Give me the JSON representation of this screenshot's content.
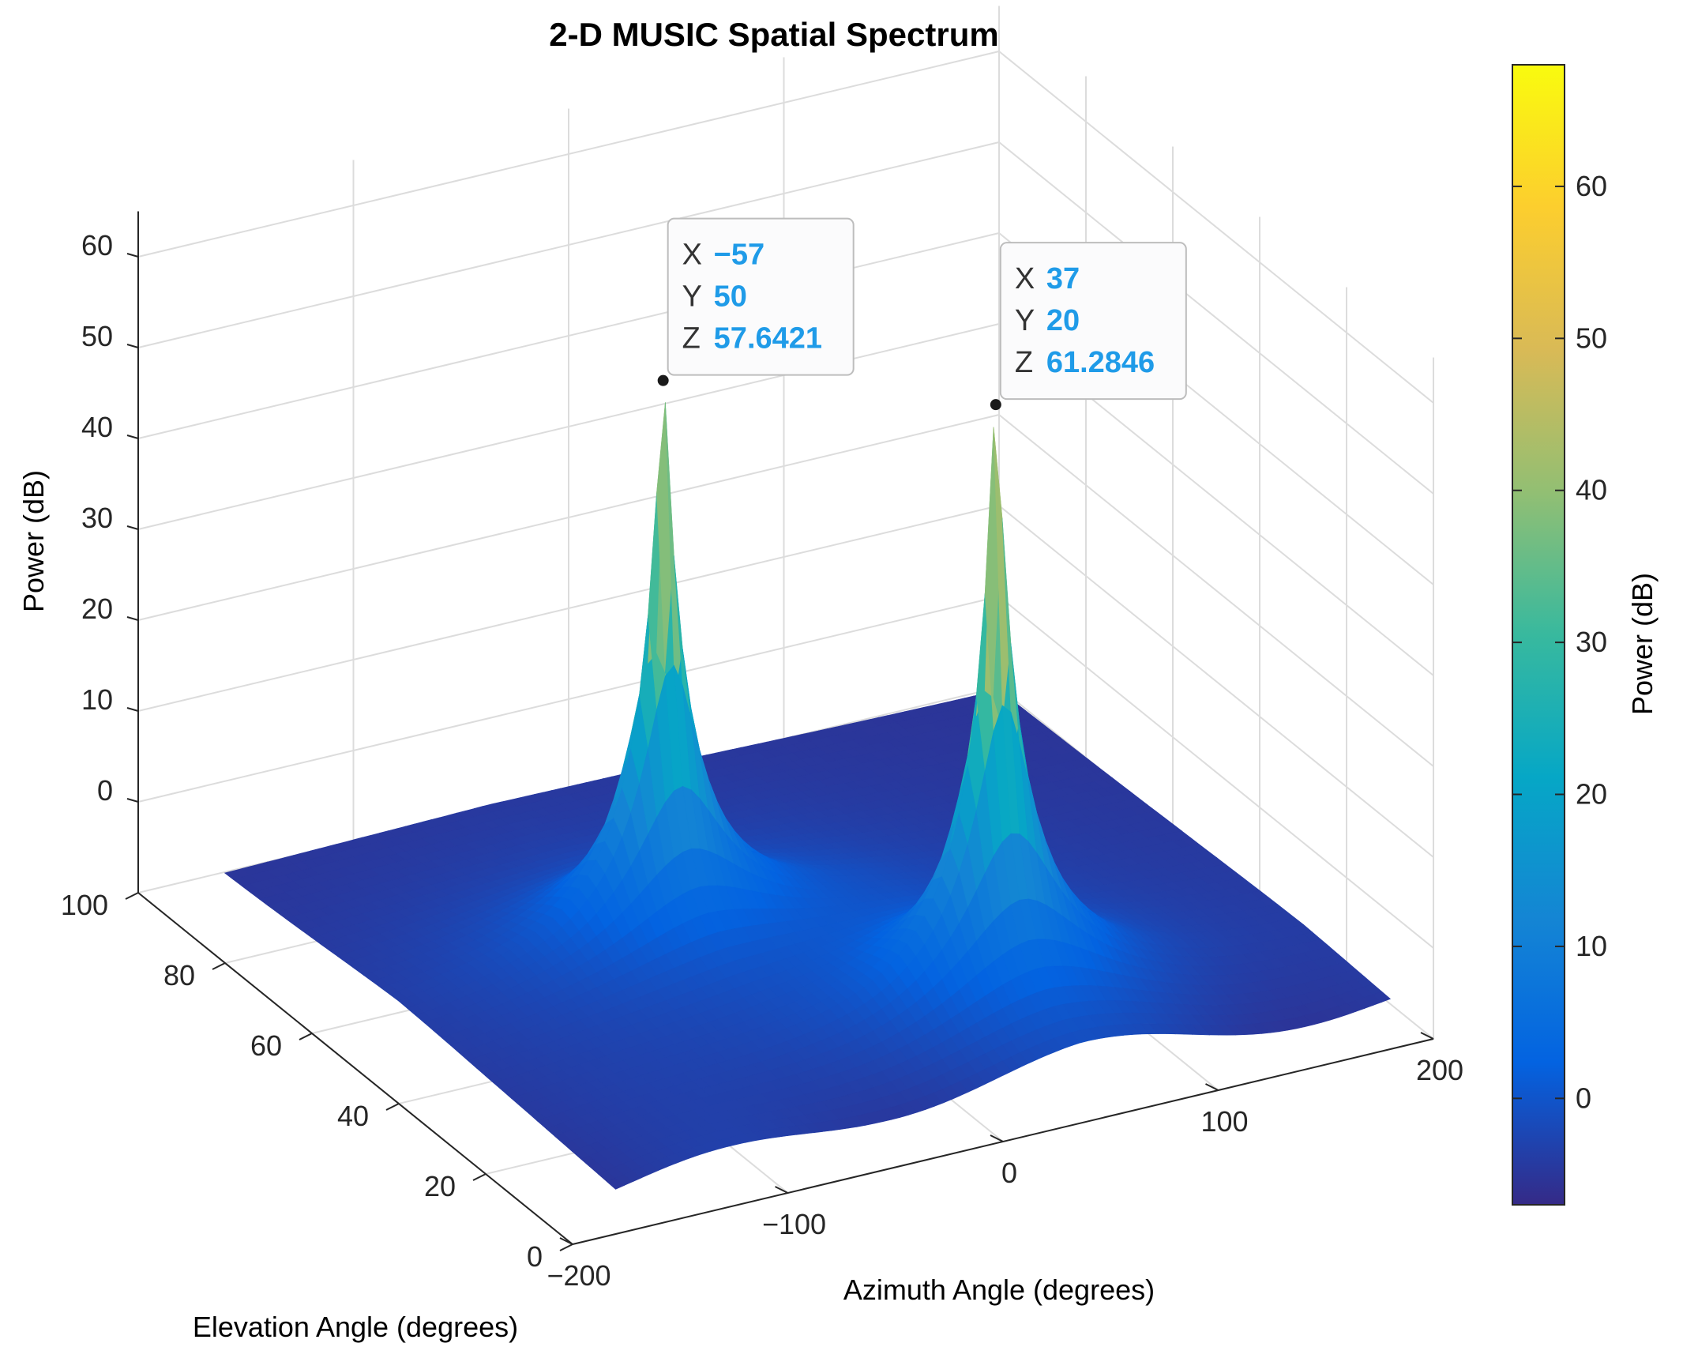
{
  "chart_data": {
    "type": "surface",
    "title": "2-D MUSIC Spatial Spectrum",
    "xlabel": "Azimuth Angle (degrees)",
    "ylabel": "Elevation Angle (degrees)",
    "zlabel": "Power (dB)",
    "colorbar_label": "Power (dB)",
    "xlim": [
      -200,
      200
    ],
    "ylim": [
      0,
      100
    ],
    "zlim": [
      -10,
      65
    ],
    "x_ticks": [
      -200,
      -100,
      0,
      100,
      200
    ],
    "x_tick_labels": [
      "−200",
      "−100",
      "0",
      "100",
      "200"
    ],
    "y_ticks": [
      0,
      20,
      40,
      60,
      80,
      100
    ],
    "y_tick_labels": [
      "0",
      "20",
      "40",
      "60",
      "80",
      "100"
    ],
    "z_ticks": [
      0,
      10,
      20,
      30,
      40,
      50,
      60
    ],
    "z_tick_labels": [
      "0",
      "10",
      "20",
      "30",
      "40",
      "50",
      "60"
    ],
    "colorbar_range": [
      -7,
      68
    ],
    "colorbar_ticks": [
      0,
      10,
      20,
      30,
      40,
      50,
      60
    ],
    "colorbar_tick_labels": [
      "0",
      "10",
      "20",
      "30",
      "40",
      "50",
      "60"
    ],
    "colormap": "parula",
    "grid": true,
    "surface_domain": {
      "x": [
        -180,
        180
      ],
      "y": [
        0,
        90
      ]
    },
    "background_level_db": -6,
    "peaks": [
      {
        "x": -57,
        "y": 50,
        "z": 57.6421
      },
      {
        "x": 37,
        "y": 20,
        "z": 61.2846
      }
    ],
    "datatips": [
      {
        "x_label": "X",
        "x_value": "−57",
        "y_label": "Y",
        "y_value": "50",
        "z_label": "Z",
        "z_value": "57.6421"
      },
      {
        "x_label": "X",
        "x_value": "37",
        "y_label": "Y",
        "y_value": "20",
        "z_label": "Z",
        "z_value": "61.2846"
      }
    ]
  },
  "colors": {
    "datatip_value": "#1f9be8",
    "datatip_label": "#333333",
    "axis": "#262626",
    "grid": "#dcdcdc",
    "marker": "#1a1a1a"
  }
}
